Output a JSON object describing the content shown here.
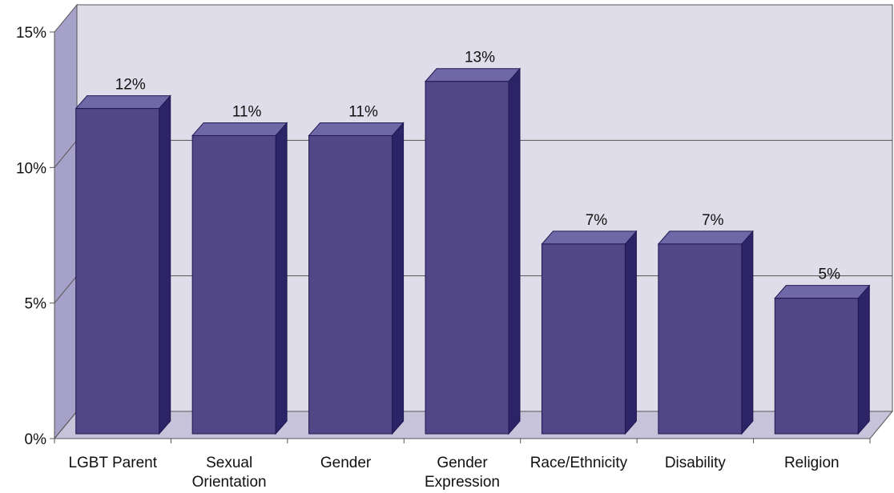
{
  "chart_data": {
    "type": "bar",
    "title": "",
    "xlabel": "",
    "ylabel": "",
    "categories": [
      [
        "LGBT Parent"
      ],
      [
        "Sexual",
        "Orientation"
      ],
      [
        "Gender"
      ],
      [
        "Gender",
        "Expression"
      ],
      [
        "Race/Ethnicity"
      ],
      [
        "Disability"
      ],
      [
        "Religion"
      ]
    ],
    "values": [
      12,
      11,
      11,
      13,
      7,
      7,
      5
    ],
    "data_labels": [
      "12%",
      "11%",
      "11%",
      "13%",
      "7%",
      "7%",
      "5%"
    ],
    "yticks": [
      {
        "value": 0,
        "label": "0%"
      },
      {
        "value": 5,
        "label": "5%"
      },
      {
        "value": 10,
        "label": "10%"
      },
      {
        "value": 15,
        "label": "15%"
      }
    ],
    "ylim": [
      0,
      15
    ],
    "grid": true,
    "legend": "none",
    "style": "3d-column",
    "colors": {
      "bar_front": "#514786",
      "bar_side": "#2d2468",
      "bar_top": "#6f67a6",
      "bar_outline": "#1e1850",
      "back_wall": "#dedde9",
      "side_wall": "#a6a1c8",
      "floor": "#c6c3da",
      "axis": "#555555",
      "grid": "#555555",
      "text": "#111111"
    }
  }
}
